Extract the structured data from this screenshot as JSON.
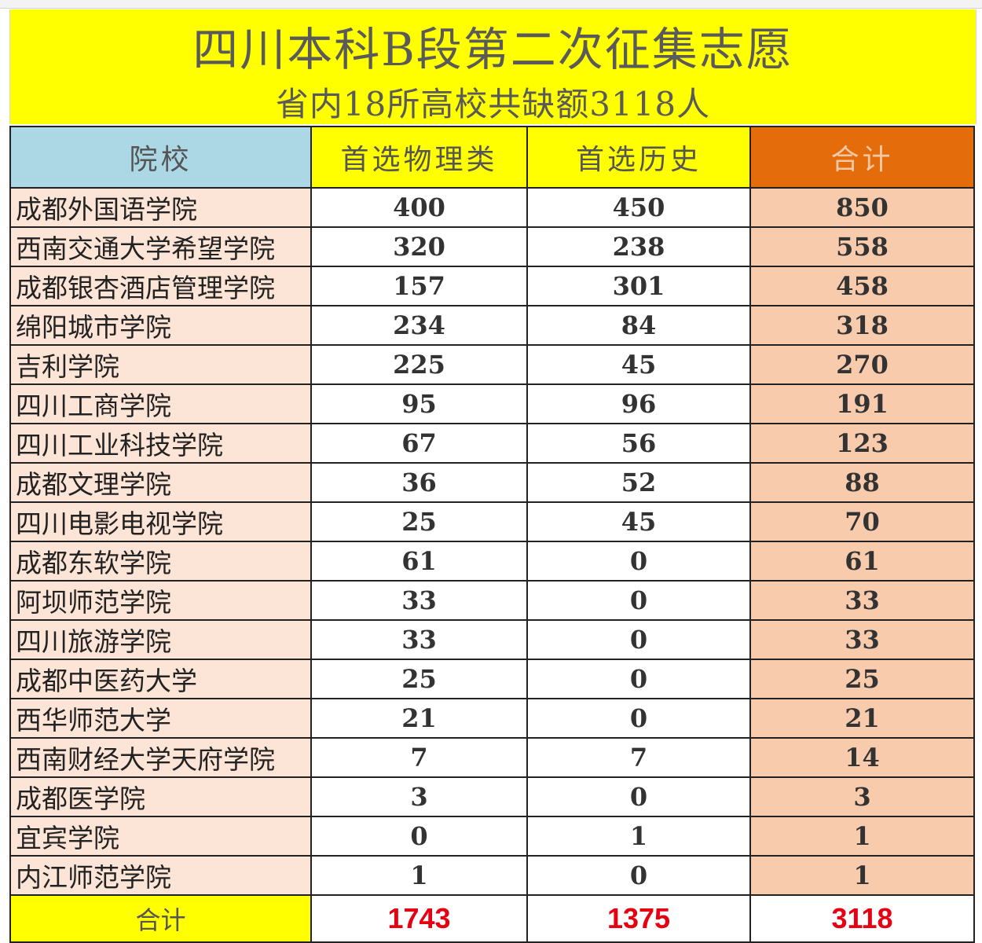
{
  "banner": {
    "title": "四川本科B段第二次征集志愿",
    "subtitle": "省内18所高校共缺额3118人"
  },
  "headers": {
    "school": "院校",
    "physics": "首选物理类",
    "history": "首选历史",
    "total": "合计"
  },
  "rows": [
    {
      "school": "成都外国语学院",
      "physics": "400",
      "history": "450",
      "total": "850"
    },
    {
      "school": "西南交通大学希望学院",
      "physics": "320",
      "history": "238",
      "total": "558"
    },
    {
      "school": "成都银杏酒店管理学院",
      "physics": "157",
      "history": "301",
      "total": "458"
    },
    {
      "school": "绵阳城市学院",
      "physics": "234",
      "history": "84",
      "total": "318"
    },
    {
      "school": "吉利学院",
      "physics": "225",
      "history": "45",
      "total": "270"
    },
    {
      "school": "四川工商学院",
      "physics": "95",
      "history": "96",
      "total": "191"
    },
    {
      "school": "四川工业科技学院",
      "physics": "67",
      "history": "56",
      "total": "123"
    },
    {
      "school": "成都文理学院",
      "physics": "36",
      "history": "52",
      "total": "88"
    },
    {
      "school": "四川电影电视学院",
      "physics": "25",
      "history": "45",
      "total": "70"
    },
    {
      "school": "成都东软学院",
      "physics": "61",
      "history": "0",
      "total": "61"
    },
    {
      "school": "阿坝师范学院",
      "physics": "33",
      "history": "0",
      "total": "33"
    },
    {
      "school": "四川旅游学院",
      "physics": "33",
      "history": "0",
      "total": "33"
    },
    {
      "school": "成都中医药大学",
      "physics": "25",
      "history": "0",
      "total": "25"
    },
    {
      "school": "西华师范大学",
      "physics": "21",
      "history": "0",
      "total": "21"
    },
    {
      "school": "西南财经大学天府学院",
      "physics": "7",
      "history": "7",
      "total": "14"
    },
    {
      "school": "成都医学院",
      "physics": "3",
      "history": "0",
      "total": "3"
    },
    {
      "school": "宜宾学院",
      "physics": "0",
      "history": "1",
      "total": "1"
    },
    {
      "school": "内江师范学院",
      "physics": "1",
      "history": "0",
      "total": "1"
    }
  ],
  "summary": {
    "label": "合计",
    "physics": "1743",
    "history": "1375",
    "total": "3118"
  },
  "colors": {
    "banner_bg": "#ffff00",
    "school_header_bg": "#acd8e6",
    "total_header_bg": "#e46c0a",
    "school_cell_bg": "#fce4d6",
    "total_cell_bg": "#f8cbad",
    "summary_value": "#e60012"
  }
}
